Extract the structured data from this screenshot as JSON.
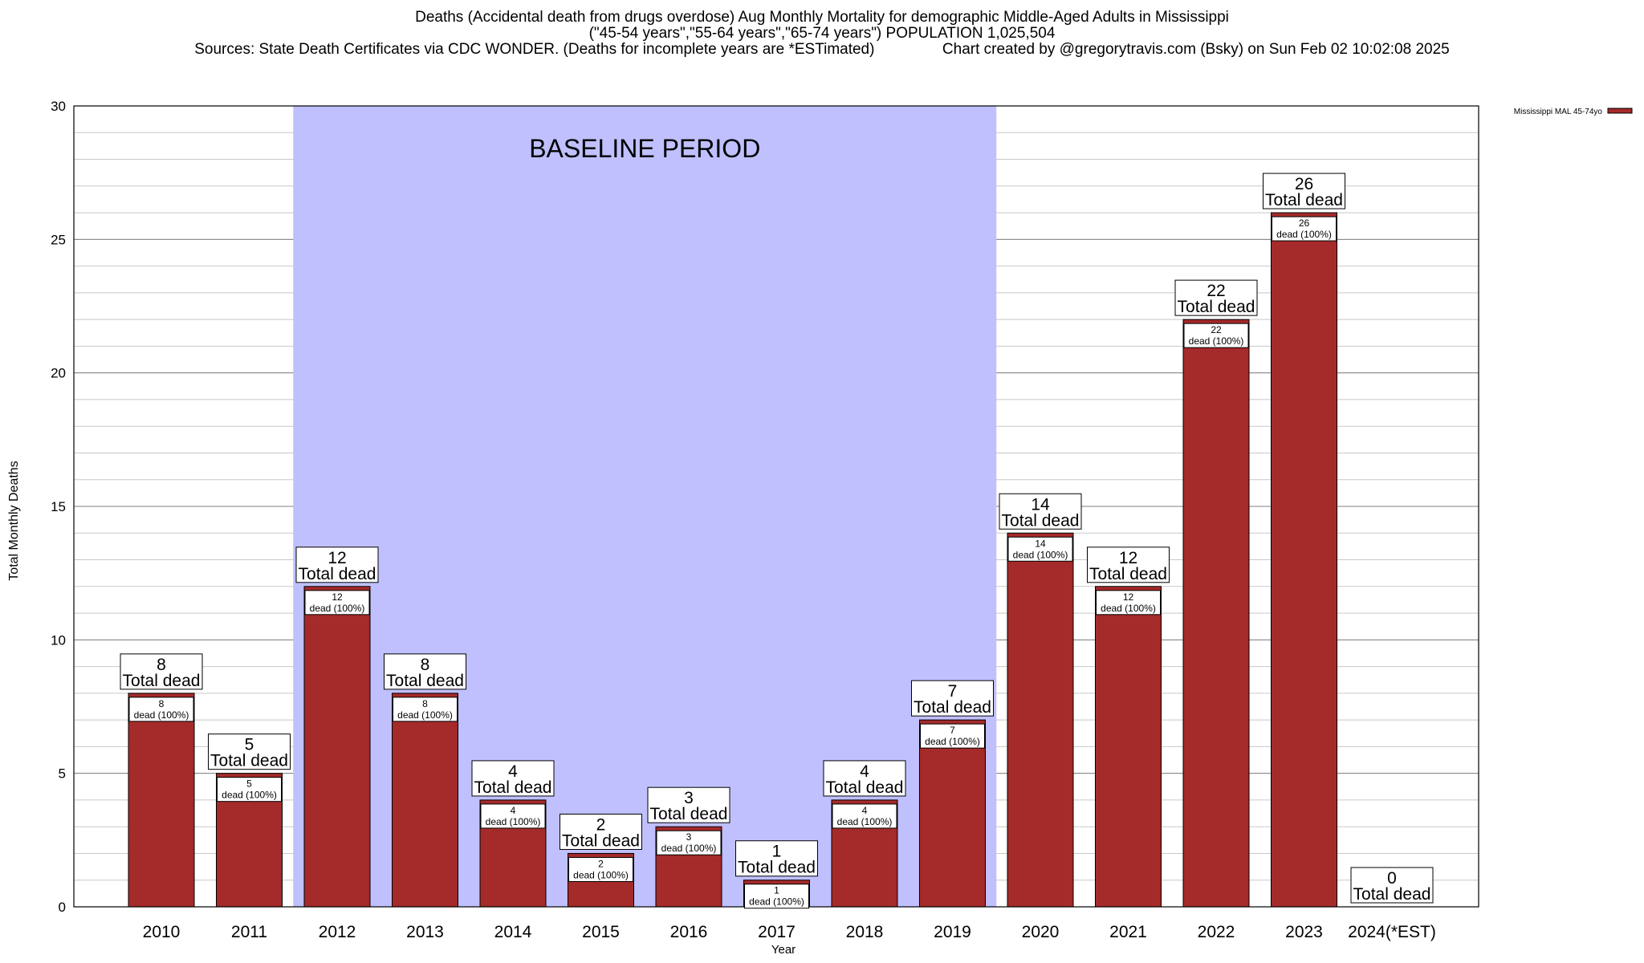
{
  "header": {
    "title": "Deaths (Accidental death from drugs overdose) Aug Monthly Mortality for demographic Middle-Aged Adults in Mississippi",
    "subtitle": "(\"45-54 years\",\"55-64 years\",\"65-74 years\") POPULATION 1,025,504",
    "source_line": "Sources: State Death Certificates via CDC WONDER. (Deaths for incomplete years are *ESTimated)                Chart created by @gregorytravis.com (Bsky) on Sun Feb 02 10:02:08 2025"
  },
  "chart_data": {
    "type": "bar",
    "xlabel": "Year",
    "ylabel": "Total Monthly Deaths",
    "ylim": [
      0,
      30
    ],
    "yticks": [
      0,
      5,
      10,
      15,
      20,
      25,
      30
    ],
    "grid": true,
    "legend_position": "top-right",
    "categories": [
      "2010",
      "2011",
      "2012",
      "2013",
      "2014",
      "2015",
      "2016",
      "2017",
      "2018",
      "2019",
      "2020",
      "2021",
      "2022",
      "2023",
      "2024(*EST)"
    ],
    "series": [
      {
        "name": "Mississippi MAL 45-74yo",
        "color": "#a52a2a",
        "values": [
          8,
          5,
          12,
          8,
          4,
          2,
          3,
          1,
          4,
          7,
          14,
          12,
          22,
          26,
          0
        ]
      }
    ],
    "total_label_suffix": "Total dead",
    "inner_label_suffix": "dead (100%)",
    "baseline_period": {
      "label": "BASELINE PERIOD",
      "from": "2012",
      "to": "2019",
      "color": "#c0c0ff"
    }
  }
}
